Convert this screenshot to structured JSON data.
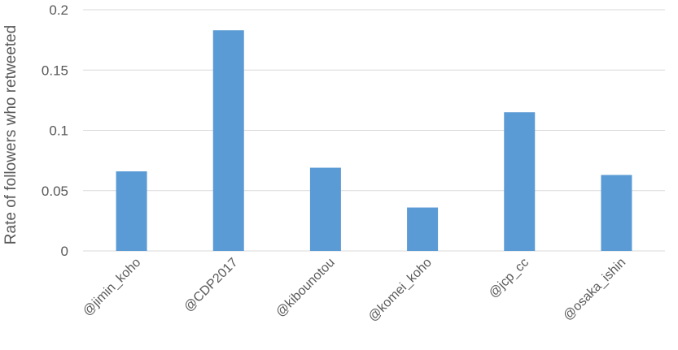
{
  "chart_data": {
    "type": "bar",
    "title": "",
    "xlabel": "",
    "ylabel": "Rate of followers who retweeted",
    "categories": [
      "@jimin_koho",
      "@CDP2017",
      "@kibounotou",
      "@komei_koho",
      "@jcp_cc",
      "@osaka_ishin"
    ],
    "values": [
      0.066,
      0.183,
      0.069,
      0.036,
      0.115,
      0.063
    ],
    "ylim": [
      0,
      0.2
    ],
    "yticks": [
      0,
      0.05,
      0.1,
      0.15,
      0.2
    ],
    "ytick_labels": [
      "0",
      "0.05",
      "0.1",
      "0.15",
      "0.2"
    ],
    "grid": true,
    "legend": "none",
    "bar_color": "#5b9bd5",
    "grid_color": "#d9d9d9",
    "text_color": "#595959"
  }
}
